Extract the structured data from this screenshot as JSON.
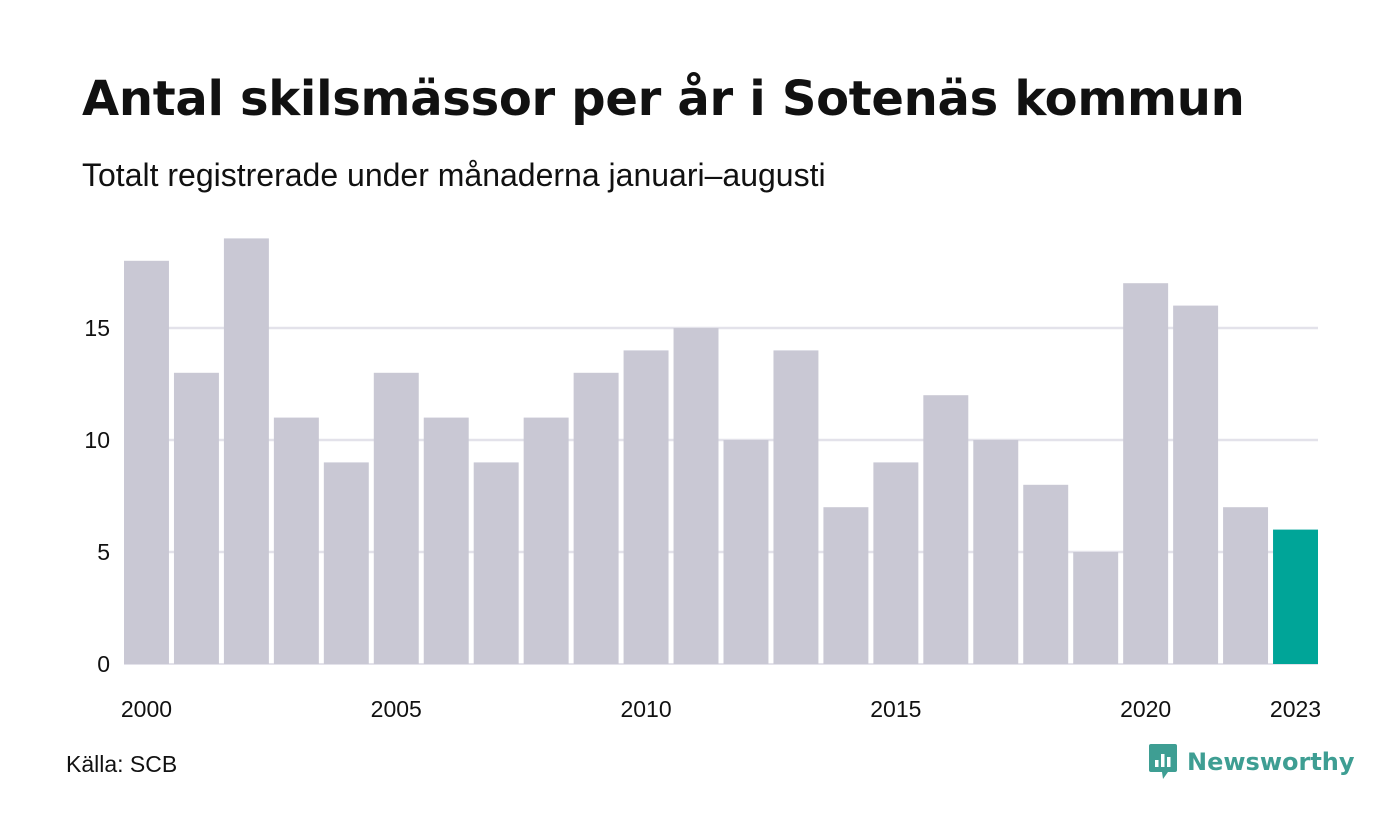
{
  "colors": {
    "bar": "#c9c8d4",
    "highlight": "#00a598",
    "grid": "#e3e2ea",
    "text": "#111111",
    "brand": "#3e9e93"
  },
  "source": "Källa: SCB",
  "brand": {
    "name": "Newsworthy",
    "icon": "newsworthy-bar-chart-speech-bubble-icon"
  },
  "chart_data": {
    "type": "bar",
    "title": "Antal skilsmässor per år i Sotenäs kommun",
    "subtitle": "Totalt registrerade under månaderna januari–augusti",
    "xlabel": "",
    "ylabel": "",
    "categories": [
      "2000",
      "2001",
      "2002",
      "2003",
      "2004",
      "2005",
      "2006",
      "2007",
      "2008",
      "2009",
      "2010",
      "2011",
      "2012",
      "2013",
      "2014",
      "2015",
      "2016",
      "2017",
      "2018",
      "2019",
      "2020",
      "2021",
      "2022",
      "2023"
    ],
    "values": [
      18,
      13,
      19,
      11,
      9,
      13,
      11,
      9,
      11,
      13,
      14,
      15,
      10,
      14,
      7,
      9,
      12,
      10,
      8,
      5,
      17,
      16,
      7,
      6
    ],
    "highlight_category": "2023",
    "x_tick_labels": [
      "2000",
      "2005",
      "2010",
      "2015",
      "2020",
      "2023"
    ],
    "y_ticks": [
      0,
      5,
      10,
      15
    ],
    "ylim": [
      0,
      19
    ],
    "grid": "horizontal",
    "legend": "none"
  }
}
